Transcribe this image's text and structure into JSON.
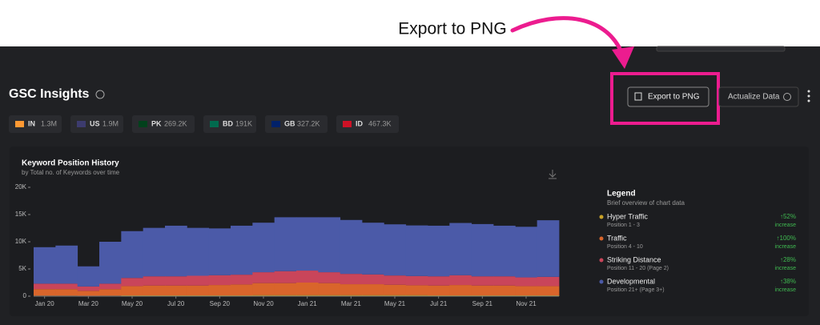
{
  "annotation": "Export to PNG",
  "header": {
    "title": "GSC Insights",
    "export_button": "Export to PNG",
    "actualize_button": "Actualize Data"
  },
  "chips": [
    {
      "code": "IN",
      "value": "1.3M"
    },
    {
      "code": "US",
      "value": "1.9M"
    },
    {
      "code": "PK",
      "value": "269.2K"
    },
    {
      "code": "BD",
      "value": "191K"
    },
    {
      "code": "GB",
      "value": "327.2K"
    },
    {
      "code": "ID",
      "value": "467.3K"
    }
  ],
  "chart_data": {
    "type": "bar",
    "stacked": true,
    "title": "Keyword Position History",
    "subtitle": "by Total no. of Keywords over time",
    "categories": [
      "Jan 20",
      null,
      "Mar 20",
      null,
      "May 20",
      null,
      "Jul 20",
      null,
      "Sep 20",
      null,
      "Nov 20",
      null,
      "Jan 21",
      null,
      "Mar 21",
      null,
      "May 21",
      null,
      "Jul 21",
      null,
      "Sep 21",
      null,
      "Nov 21",
      null
    ],
    "ylim": [
      0,
      20000
    ],
    "yticks": [
      0,
      {
        "value": 5000,
        "label": "5K"
      },
      {
        "value": 10000,
        "label": "10K"
      },
      {
        "value": 15000,
        "label": "15K"
      },
      {
        "value": 20000,
        "label": "20K"
      }
    ],
    "legend_title": "Legend",
    "legend_subtitle": "Brief overview of chart data",
    "series": [
      {
        "name": "Hyper Traffic",
        "position": "Position 1 - 3",
        "change": "↑52%",
        "change_note": "increase",
        "color": "#c9a227",
        "values": [
          100,
          100,
          80,
          100,
          150,
          150,
          150,
          150,
          150,
          150,
          200,
          200,
          200,
          200,
          200,
          200,
          200,
          200,
          150,
          150,
          150,
          150,
          150,
          150
        ]
      },
      {
        "name": "Traffic",
        "position": "Position 4 - 10",
        "change": "↑100%",
        "change_note": "increase",
        "color": "#d9652b",
        "values": [
          1200,
          1200,
          900,
          1200,
          1700,
          1800,
          1800,
          1800,
          1900,
          2000,
          2200,
          2200,
          2300,
          2200,
          2000,
          2000,
          1900,
          1800,
          1800,
          1900,
          1800,
          1800,
          1700,
          1700
        ]
      },
      {
        "name": "Striking Distance",
        "position": "Position 11 - 20 (Page 2)",
        "change": "↑28%",
        "change_note": "increase",
        "color": "#c9455a",
        "values": [
          1000,
          1000,
          800,
          1000,
          1500,
          1700,
          1700,
          1800,
          1800,
          1800,
          2000,
          2200,
          2200,
          2000,
          1900,
          1800,
          1700,
          1700,
          1700,
          1800,
          1700,
          1700,
          1600,
          1700
        ]
      },
      {
        "name": "Developmental",
        "position": "Position 21+ (Page 3+)",
        "change": "↑38%",
        "change_note": "increase",
        "color": "#4b5aa8",
        "values": [
          6700,
          7000,
          3700,
          7700,
          8600,
          8900,
          9300,
          8800,
          8600,
          9000,
          9100,
          9900,
          9800,
          10100,
          9900,
          9500,
          9400,
          9300,
          9300,
          9600,
          9600,
          9300,
          9300,
          10400
        ]
      }
    ]
  }
}
